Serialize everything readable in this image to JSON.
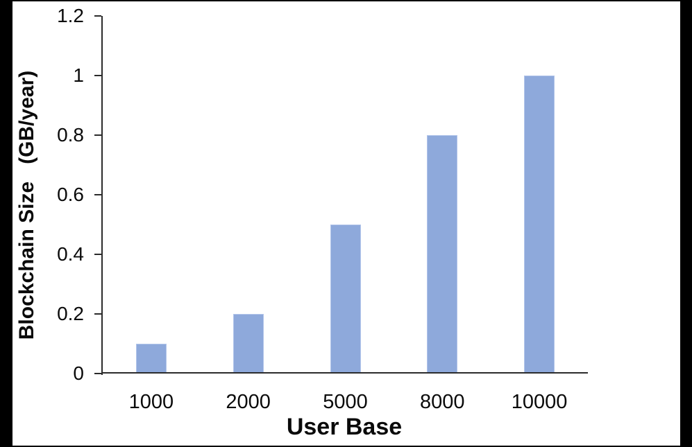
{
  "chart_data": {
    "type": "bar",
    "categories": [
      "1000",
      "2000",
      "5000",
      "8000",
      "10000"
    ],
    "values": [
      0.1,
      0.2,
      0.5,
      0.8,
      1.0
    ],
    "title": "",
    "xlabel": "User Base",
    "ylabel": "Blockchain Size   (GB/year)",
    "ylim": [
      0,
      1.2
    ],
    "yticks": [
      0,
      0.2,
      0.4,
      0.6,
      0.8,
      1,
      1.2
    ],
    "ytick_labels": [
      "0",
      "0.2",
      "0.4",
      "0.6",
      "0.8",
      "1",
      "1.2"
    ],
    "grid": false,
    "legend_position": "none",
    "colors": {
      "bar_fill": "#8EA9DB",
      "bar_border": "#B2C5EA",
      "axis": "#2b2b2b",
      "text": "#0a0a0a",
      "frame": "#000000",
      "background": "#ffffff"
    }
  }
}
